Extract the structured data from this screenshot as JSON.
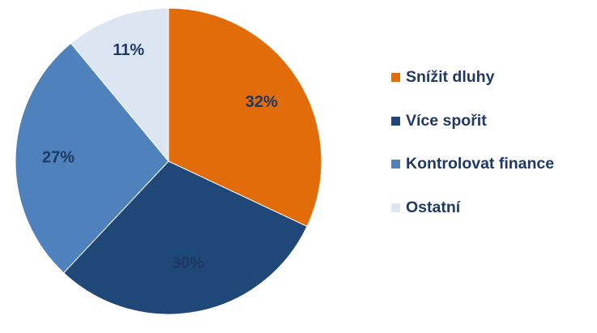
{
  "chart_data": {
    "type": "pie",
    "categories": [
      "Snížit dluhy",
      "Více spořit",
      "Kontrolovat finance",
      "Ostatní"
    ],
    "values": [
      32,
      30,
      27,
      11
    ],
    "value_labels": [
      "32%",
      "30%",
      "27%",
      "11%"
    ],
    "colors": [
      "#e36c0a",
      "#1f4778",
      "#4f81bd",
      "#dce6f2"
    ],
    "label_color": "#1f3864",
    "start_angle": "12 o'clock",
    "direction": "clockwise",
    "legend_position": "right",
    "title": ""
  }
}
